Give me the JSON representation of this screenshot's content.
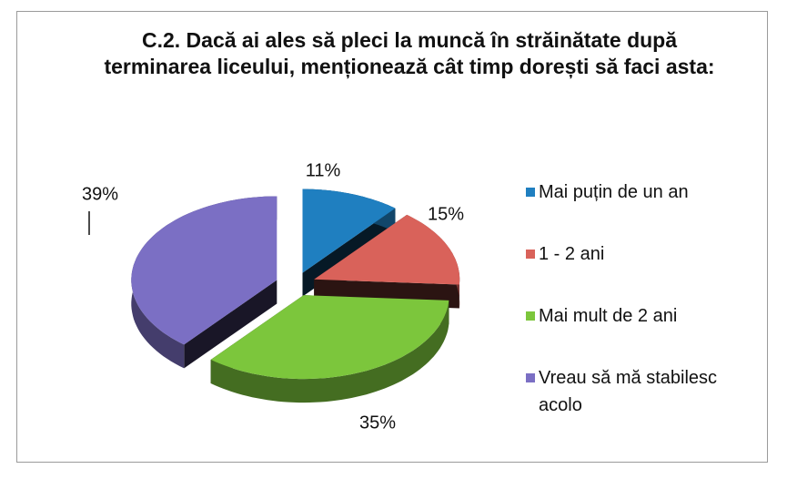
{
  "chart_data": {
    "type": "pie",
    "title": "C.2. Dacă ai ales să pleci la muncă în străinătate după terminarea liceului, menționează cât timp dorești să faci asta:",
    "categories": [
      "Mai puțin de un an",
      "1 - 2 ani",
      "Mai mult de 2 ani",
      "Vreau să mă stabilesc acolo"
    ],
    "values": [
      11,
      15,
      35,
      39
    ],
    "value_labels": [
      "11%",
      "15%",
      "35%",
      "39%"
    ],
    "colors": [
      "#1f7fc0",
      "#d9625a",
      "#7cc63c",
      "#7b6fc4"
    ],
    "legend": "right"
  }
}
